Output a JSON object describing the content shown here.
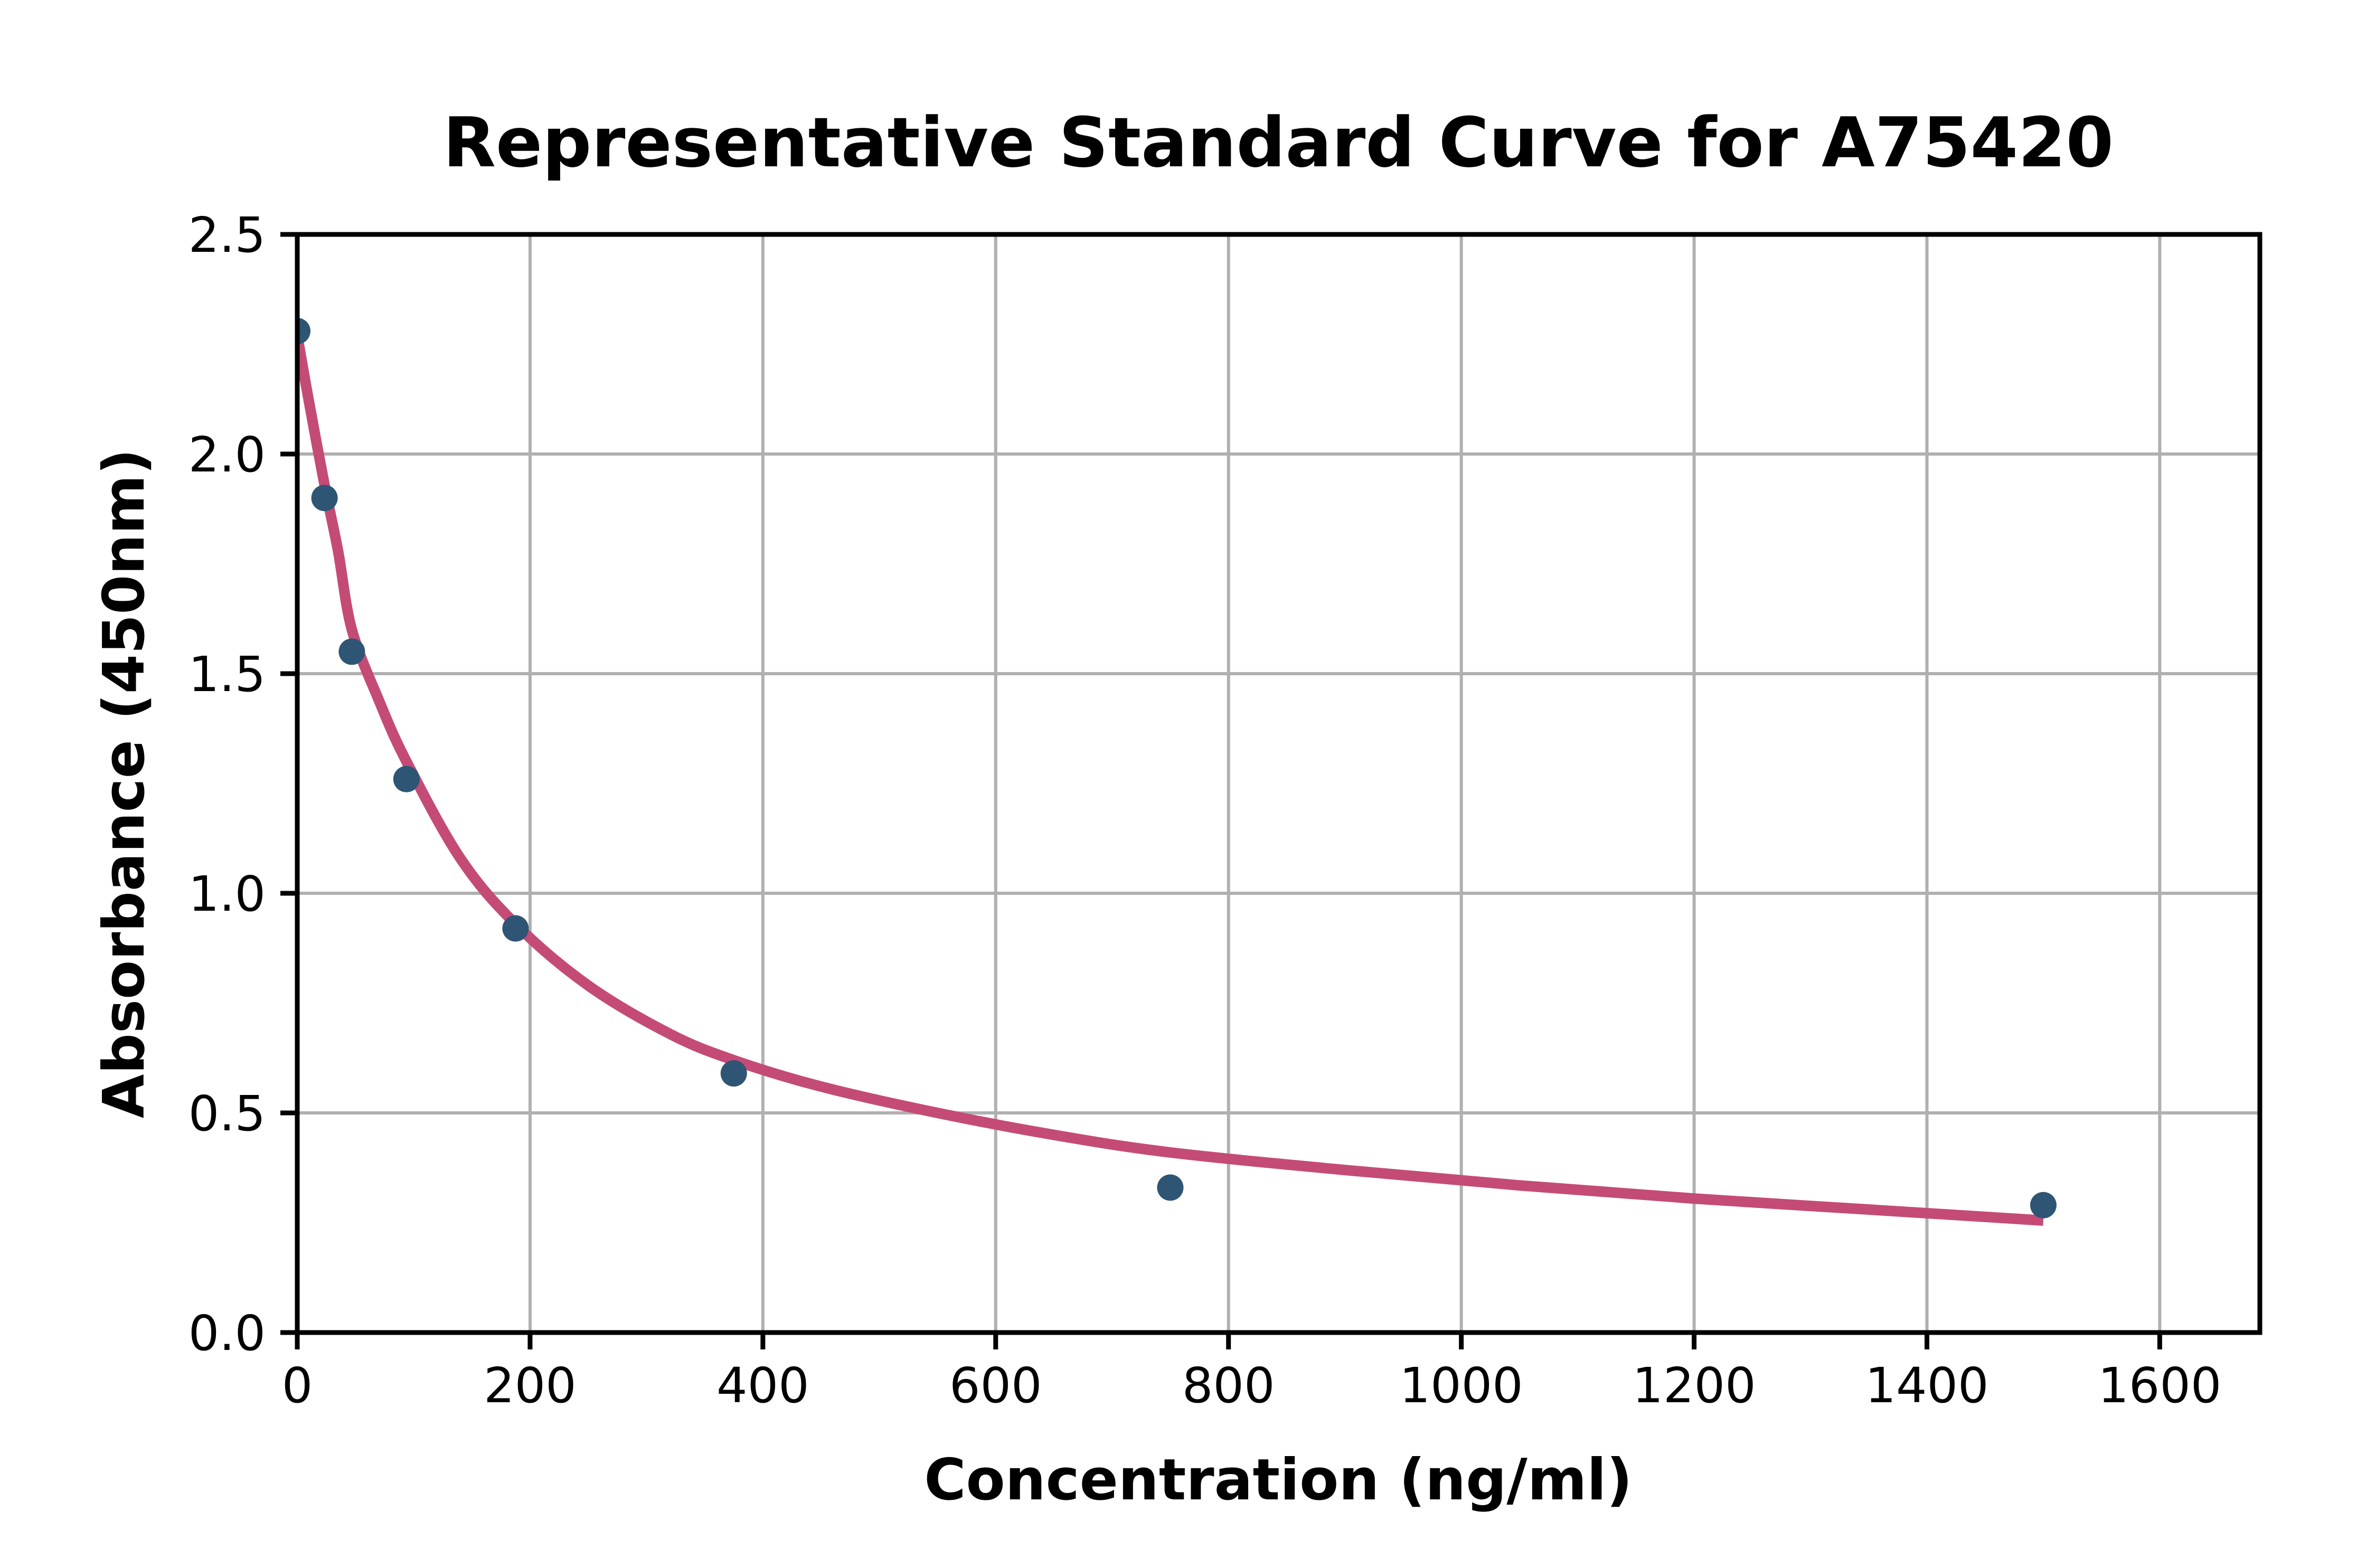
{
  "chart_data": {
    "type": "scatter",
    "title": "Representative Standard Curve for A75420",
    "xlabel": "Concentration (ng/ml)",
    "ylabel": "Absorbance (450nm)",
    "xlim": [
      0,
      1686
    ],
    "ylim": [
      0,
      2.5
    ],
    "grid": true,
    "legend_position": "none",
    "x_ticks": {
      "values": [
        0,
        200,
        400,
        600,
        800,
        1000,
        1200,
        1400,
        1600
      ],
      "labels": [
        "0",
        "200",
        "400",
        "600",
        "800",
        "1000",
        "1200",
        "1400",
        "1600"
      ]
    },
    "y_ticks": {
      "values": [
        0,
        0.5,
        1.0,
        1.5,
        2.0,
        2.5
      ],
      "labels": [
        "0.0",
        "0.5",
        "1.0",
        "1.5",
        "2.0",
        "2.5"
      ]
    },
    "series": [
      {
        "name": "standard-points",
        "type": "scatter",
        "x": [
          0,
          23.4,
          46.9,
          93.8,
          187.5,
          375,
          750,
          1500
        ],
        "y": [
          2.28,
          1.9,
          1.55,
          1.26,
          0.92,
          0.59,
          0.33,
          0.29
        ]
      },
      {
        "name": "fitted-curve",
        "type": "line",
        "points": [
          [
            0,
            2.27
          ],
          [
            10,
            2.12
          ],
          [
            23.4,
            1.93
          ],
          [
            35,
            1.78
          ],
          [
            46.9,
            1.6
          ],
          [
            70,
            1.44
          ],
          [
            93.8,
            1.3
          ],
          [
            140,
            1.08
          ],
          [
            187.5,
            0.93
          ],
          [
            250,
            0.79
          ],
          [
            320,
            0.68
          ],
          [
            375,
            0.62
          ],
          [
            450,
            0.56
          ],
          [
            550,
            0.5
          ],
          [
            650,
            0.45
          ],
          [
            750,
            0.41
          ],
          [
            900,
            0.37
          ],
          [
            1050,
            0.335
          ],
          [
            1200,
            0.305
          ],
          [
            1350,
            0.28
          ],
          [
            1500,
            0.255
          ]
        ]
      }
    ],
    "colors": {
      "marker": "#2e5574",
      "curve": "#c44b76",
      "grid": "#b0b0b0",
      "axis": "#000000",
      "background": "#ffffff"
    }
  }
}
